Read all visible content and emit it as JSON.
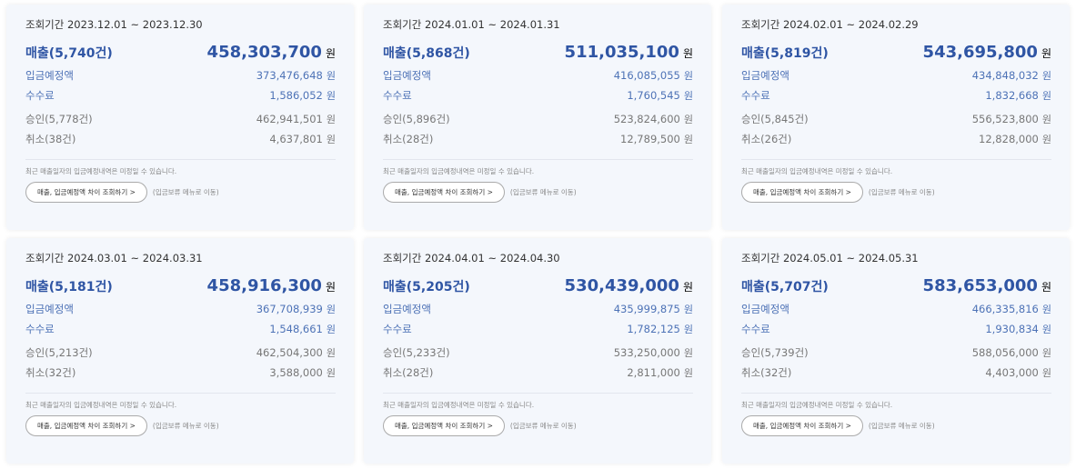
{
  "currency": "원",
  "note": "최근 매출일자의 입금예정내역은 미정일 수 있습니다.",
  "button_label": "매출, 입금예정액 차이 조회하기 >",
  "link_label": "(입금보류 메뉴로 이동)",
  "labels": {
    "deposit": "입금예정액",
    "fee": "수수료"
  },
  "cards": [
    {
      "period": "조회기간 2023.12.01 ~ 2023.12.30",
      "sales_label": "매출(5,740건)",
      "sales": "458,303,700",
      "deposit": "373,476,648",
      "fee": "1,586,052",
      "approve_label": "승인(5,778건)",
      "approve": "462,941,501",
      "cancel_label": "취소(38건)",
      "cancel": "4,637,801"
    },
    {
      "period": "조회기간 2024.01.01 ~ 2024.01.31",
      "sales_label": "매출(5,868건)",
      "sales": "511,035,100",
      "deposit": "416,085,055",
      "fee": "1,760,545",
      "approve_label": "승인(5,896건)",
      "approve": "523,824,600",
      "cancel_label": "취소(28건)",
      "cancel": "12,789,500"
    },
    {
      "period": "조회기간 2024.02.01 ~ 2024.02.29",
      "sales_label": "매출(5,819건)",
      "sales": "543,695,800",
      "deposit": "434,848,032",
      "fee": "1,832,668",
      "approve_label": "승인(5,845건)",
      "approve": "556,523,800",
      "cancel_label": "취소(26건)",
      "cancel": "12,828,000"
    },
    {
      "period": "조회기간 2024.03.01 ~ 2024.03.31",
      "sales_label": "매출(5,181건)",
      "sales": "458,916,300",
      "deposit": "367,708,939",
      "fee": "1,548,661",
      "approve_label": "승인(5,213건)",
      "approve": "462,504,300",
      "cancel_label": "취소(32건)",
      "cancel": "3,588,000"
    },
    {
      "period": "조회기간 2024.04.01 ~ 2024.04.30",
      "sales_label": "매출(5,205건)",
      "sales": "530,439,000",
      "deposit": "435,999,875",
      "fee": "1,782,125",
      "approve_label": "승인(5,233건)",
      "approve": "533,250,000",
      "cancel_label": "취소(28건)",
      "cancel": "2,811,000"
    },
    {
      "period": "조회기간 2024.05.01 ~ 2024.05.31",
      "sales_label": "매출(5,707건)",
      "sales": "583,653,000",
      "deposit": "466,335,816",
      "fee": "1,930,834",
      "approve_label": "승인(5,739건)",
      "approve": "588,056,000",
      "cancel_label": "취소(32건)",
      "cancel": "4,403,000"
    }
  ]
}
